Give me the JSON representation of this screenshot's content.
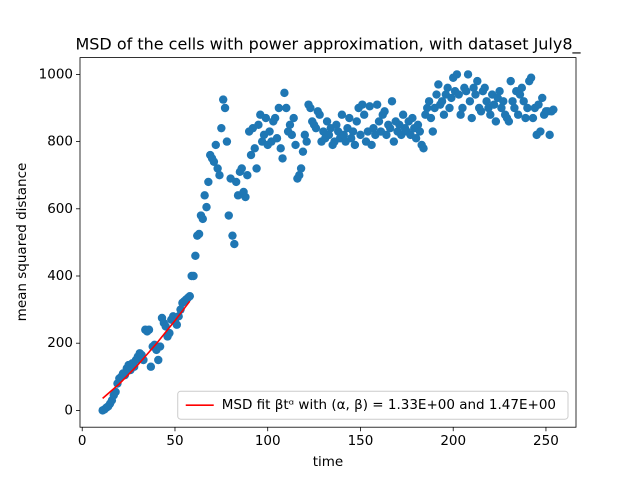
{
  "chart_data": {
    "type": "scatter",
    "title": "MSD of the cells with power approximation, with dataset July8_",
    "xlabel": "time",
    "ylabel": "mean squared distance",
    "xlim": [
      -1.2,
      266.2
    ],
    "ylim": [
      -50,
      1050
    ],
    "xticks": [
      0,
      50,
      100,
      150,
      200,
      250
    ],
    "yticks": [
      0,
      200,
      400,
      600,
      800,
      1000
    ],
    "legend": "lower right",
    "series": [
      {
        "type": "scatter",
        "color": "#1f77b4",
        "x": [
          11,
          12,
          13,
          14,
          15,
          16,
          17,
          18,
          19,
          20,
          21,
          22,
          23,
          24,
          25,
          26,
          27,
          28,
          29,
          30,
          31,
          32,
          33,
          34,
          35,
          36,
          37,
          38,
          39,
          40,
          41,
          42,
          43,
          44,
          45,
          46,
          47,
          48,
          49,
          50,
          51,
          52,
          53,
          54,
          55,
          56,
          57,
          58,
          59,
          60,
          61,
          62,
          63,
          64,
          65,
          66,
          67,
          68,
          69,
          70,
          71,
          72,
          73,
          74,
          75,
          76,
          77,
          78,
          79,
          80,
          81,
          82,
          83,
          84,
          85,
          86,
          87,
          88,
          89,
          90,
          91,
          92,
          93,
          94,
          95,
          96,
          97,
          98,
          99,
          100,
          101,
          102,
          103,
          104,
          105,
          106,
          107,
          108,
          109,
          110,
          111,
          112,
          113,
          114,
          115,
          116,
          117,
          118,
          119,
          120,
          121,
          122,
          123,
          124,
          125,
          126,
          127,
          128,
          129,
          130,
          131,
          132,
          133,
          134,
          135,
          136,
          137,
          138,
          139,
          140,
          141,
          142,
          143,
          144,
          145,
          146,
          147,
          148,
          149,
          150,
          151,
          152,
          153,
          154,
          155,
          156,
          157,
          158,
          159,
          160,
          161,
          162,
          163,
          164,
          165,
          166,
          167,
          168,
          169,
          170,
          171,
          172,
          173,
          174,
          175,
          176,
          177,
          178,
          179,
          180,
          181,
          182,
          183,
          184,
          185,
          186,
          187,
          188,
          189,
          190,
          191,
          192,
          193,
          194,
          195,
          196,
          197,
          198,
          199,
          200,
          201,
          202,
          203,
          204,
          205,
          206,
          207,
          208,
          209,
          210,
          211,
          212,
          213,
          214,
          215,
          216,
          217,
          218,
          219,
          220,
          221,
          222,
          223,
          224,
          225,
          226,
          227,
          228,
          229,
          230,
          231,
          232,
          233,
          234,
          235,
          236,
          237,
          238,
          239,
          240,
          241,
          242,
          243,
          244,
          245,
          246,
          247,
          248,
          249,
          250,
          251,
          252,
          253,
          254
        ],
        "values": [
          0,
          3,
          8,
          12,
          20,
          30,
          45,
          55,
          80,
          95,
          100,
          110,
          105,
          125,
          135,
          120,
          140,
          130,
          150,
          160,
          170,
          165,
          150,
          240,
          235,
          240,
          130,
          190,
          195,
          180,
          150,
          190,
          275,
          260,
          250,
          220,
          230,
          270,
          280,
          265,
          255,
          280,
          300,
          320,
          325,
          330,
          335,
          340,
          400,
          400,
          460,
          520,
          525,
          580,
          570,
          640,
          605,
          680,
          760,
          750,
          740,
          790,
          720,
          700,
          840,
          925,
          900,
          800,
          580,
          690,
          520,
          495,
          680,
          640,
          710,
          720,
          650,
          635,
          700,
          830,
          760,
          840,
          780,
          720,
          850,
          880,
          800,
          820,
          870,
          790,
          830,
          800,
          860,
          870,
          810,
          900,
          780,
          750,
          945,
          900,
          830,
          850,
          820,
          870,
          790,
          690,
          700,
          720,
          770,
          820,
          800,
          910,
          900,
          860,
          850,
          840,
          890,
          880,
          800,
          830,
          810,
          860,
          820,
          840,
          790,
          800,
          850,
          830,
          810,
          880,
          820,
          800,
          840,
          870,
          810,
          830,
          790,
          860,
          900,
          820,
          910,
          880,
          800,
          830,
          905,
          790,
          840,
          820,
          910,
          860,
          830,
          880,
          890,
          820,
          850,
          840,
          920,
          800,
          860,
          830,
          850,
          820,
          880,
          840,
          830,
          860,
          820,
          870,
          840,
          810,
          850,
          830,
          790,
          780,
          880,
          900,
          920,
          870,
          830,
          900,
          940,
          970,
          910,
          920,
          880,
          940,
          960,
          900,
          930,
          990,
          950,
          1000,
          940,
          880,
          900,
          960,
          950,
          1000,
          920,
          870,
          960,
          940,
          980,
          900,
          890,
          950,
          960,
          920,
          900,
          880,
          940,
          910,
          860,
          930,
          950,
          900,
          920,
          880,
          870,
          860,
          980,
          920,
          900,
          950,
          880,
          940,
          960,
          920,
          870,
          900,
          980,
          990,
          870,
          900,
          820,
          910,
          830,
          930,
          880,
          890,
          890,
          820,
          890,
          895
        ]
      },
      {
        "type": "line",
        "name": "MSD fit βtᵅ with (α, β) =  1.33E+00 and 1.47E+00",
        "color": "#ff0000",
        "x": [
          11,
          20,
          30,
          40,
          50,
          58
        ],
        "values": [
          35.7,
          79,
          135.5,
          198.6,
          267,
          325
        ]
      }
    ]
  }
}
